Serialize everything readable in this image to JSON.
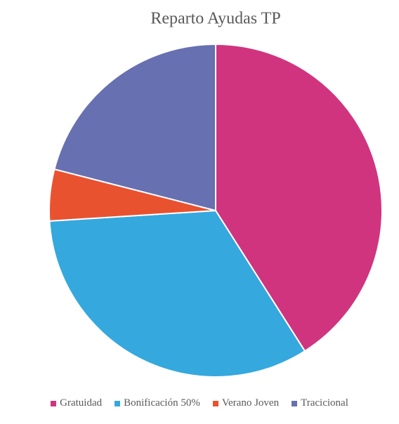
{
  "chart_data": {
    "type": "pie",
    "title": "Reparto Ayudas TP",
    "categories": [
      "Gratuidad",
      "Bonificación 50%",
      "Verano Joven",
      "Tracicional"
    ],
    "values": [
      41,
      33,
      5,
      21
    ],
    "colors": [
      "#d0347f",
      "#35a8de",
      "#e9522f",
      "#6770b0"
    ],
    "legend": "bottom"
  }
}
